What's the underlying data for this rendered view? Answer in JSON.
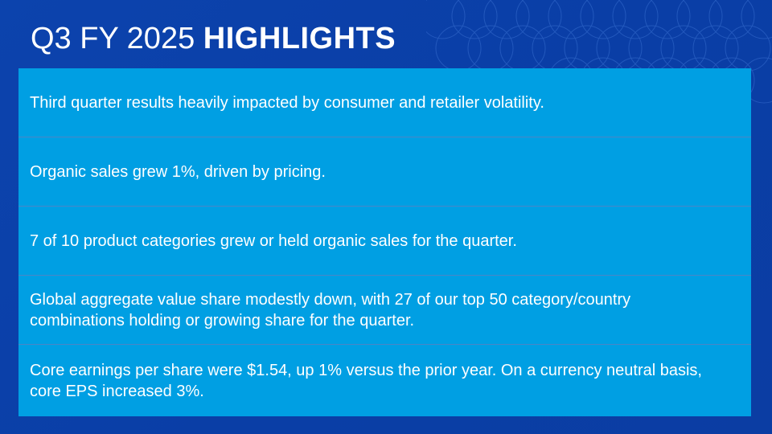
{
  "slide": {
    "title_light": "Q3 FY 2025",
    "title_bold": "HIGHLIGHTS",
    "colors": {
      "background": "#0a3ea6",
      "panel": "#009fe3",
      "divider": "#4a86c6",
      "text": "#ffffff"
    },
    "highlights": [
      "Third quarter results heavily impacted by consumer and retailer volatility.",
      "Organic sales grew 1%, driven by pricing.",
      "7 of 10 product categories grew or held organic sales for the quarter.",
      "Global aggregate value share modestly down, with 27 of our top 50 category/country combinations holding or growing share for the quarter.",
      "Core earnings per share were $1.54, up 1% versus the prior year. On a currency neutral basis, core EPS increased 3%."
    ]
  }
}
